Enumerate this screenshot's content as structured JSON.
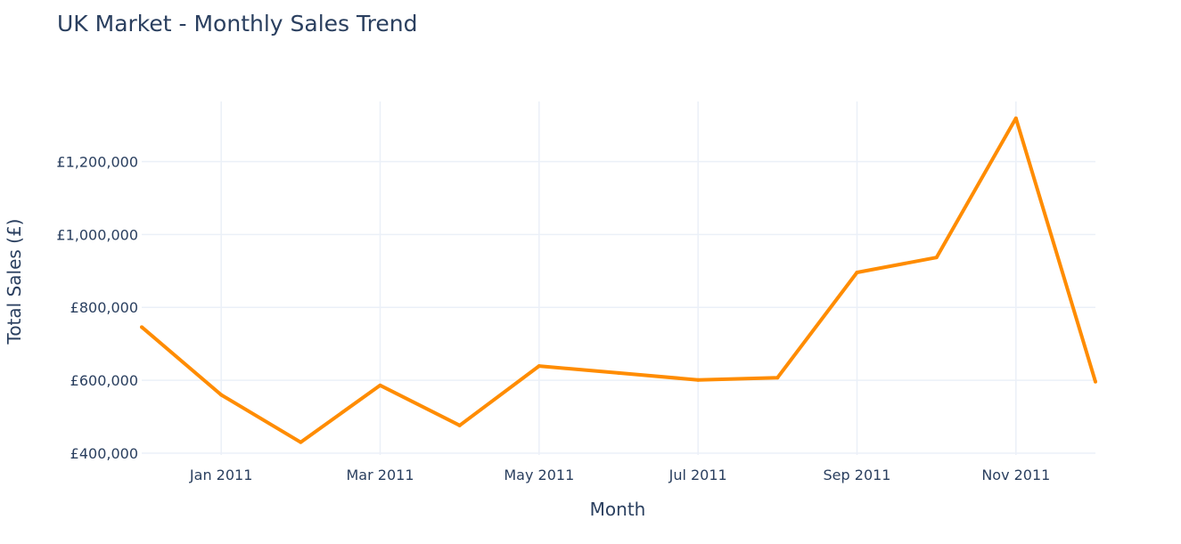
{
  "chart_data": {
    "type": "line",
    "title": "UK Market - Monthly Sales Trend",
    "xlabel": "Month",
    "ylabel": "Total Sales (£)",
    "x": [
      "2010-12",
      "2011-01",
      "2011-02",
      "2011-03",
      "2011-04",
      "2011-05",
      "2011-06",
      "2011-07",
      "2011-08",
      "2011-09",
      "2011-10",
      "2011-11",
      "2011-12"
    ],
    "series": [
      {
        "values": [
          746000,
          560000,
          430000,
          586000,
          476000,
          639000,
          620000,
          601000,
          607000,
          896000,
          937000,
          1319000,
          596000
        ],
        "color": "#ff8c00"
      }
    ],
    "xticks": [
      {
        "x": "2011-01",
        "label": "Jan 2011"
      },
      {
        "x": "2011-03",
        "label": "Mar 2011"
      },
      {
        "x": "2011-05",
        "label": "May 2011"
      },
      {
        "x": "2011-07",
        "label": "Jul 2011"
      },
      {
        "x": "2011-09",
        "label": "Sep 2011"
      },
      {
        "x": "2011-11",
        "label": "Nov 2011"
      }
    ],
    "yticks": [
      {
        "value": 400000,
        "label": "£400,000"
      },
      {
        "value": 600000,
        "label": "£600,000"
      },
      {
        "value": 800000,
        "label": "£800,000"
      },
      {
        "value": 1000000,
        "label": "£1,000,000"
      },
      {
        "value": 1200000,
        "label": "£1,200,000"
      }
    ],
    "ylim": [
      395000,
      1365000
    ],
    "grid": true,
    "grid_color": "#ebf0f8"
  }
}
